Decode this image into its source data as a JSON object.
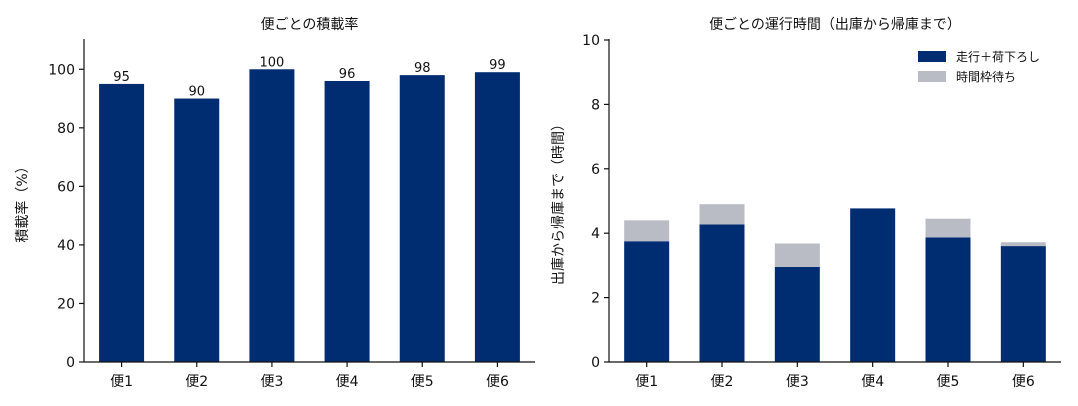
{
  "colors": {
    "primary": "#002d72",
    "secondary": "#b9bcc4"
  },
  "chart_data": [
    {
      "type": "bar",
      "title": "便ごとの積載率",
      "xlabel": "",
      "ylabel": "積載率（%）",
      "categories": [
        "便1",
        "便2",
        "便3",
        "便4",
        "便5",
        "便6"
      ],
      "values": [
        95,
        90,
        100,
        96,
        98,
        99
      ],
      "data_labels": [
        "95",
        "90",
        "100",
        "96",
        "98",
        "99"
      ],
      "ylim": [
        0,
        110
      ],
      "yticks": [
        0,
        20,
        40,
        60,
        80,
        100
      ],
      "grid": false
    },
    {
      "type": "bar",
      "stacked": true,
      "title": "便ごとの運行時間（出庫から帰庫まで）",
      "xlabel": "",
      "ylabel": "出庫から帰庫まで（時間）",
      "categories": [
        "便1",
        "便2",
        "便3",
        "便4",
        "便5",
        "便6"
      ],
      "series": [
        {
          "name": "走行＋荷下ろし",
          "values": [
            3.75,
            4.27,
            2.95,
            4.77,
            3.87,
            3.6
          ]
        },
        {
          "name": "時間枠待ち",
          "values": [
            0.65,
            0.63,
            0.73,
            0.0,
            0.58,
            0.12
          ]
        }
      ],
      "ylim": [
        0,
        10
      ],
      "yticks": [
        0,
        2,
        4,
        6,
        8,
        10
      ],
      "legend": "top-right",
      "grid": false
    }
  ]
}
